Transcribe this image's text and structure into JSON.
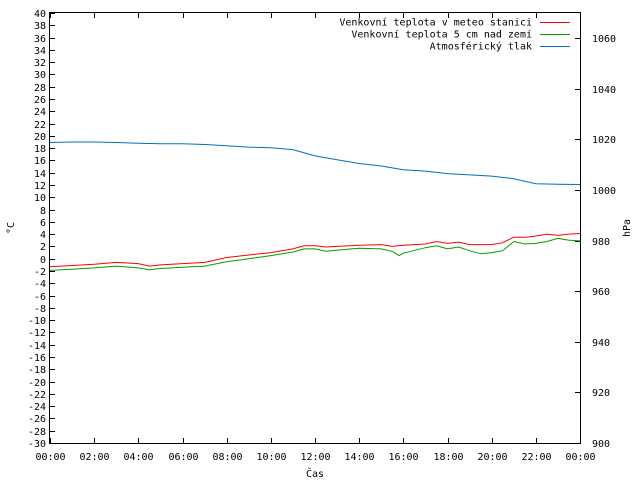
{
  "chart_data": {
    "type": "line",
    "xlabel": "Čas",
    "ylabel_left": "°C",
    "ylabel_right": "hPa",
    "xlim": [
      0,
      24
    ],
    "ylim_left": [
      -30,
      40
    ],
    "ylim_right": [
      900,
      1070
    ],
    "x_tick_labels": [
      "00:00",
      "02:00",
      "04:00",
      "06:00",
      "08:00",
      "10:00",
      "12:00",
      "14:00",
      "16:00",
      "18:00",
      "20:00",
      "22:00",
      "00:00"
    ],
    "y_left_ticks": [
      -30,
      -28,
      -26,
      -24,
      -22,
      -20,
      -18,
      -16,
      -14,
      -12,
      -10,
      -8,
      -6,
      -4,
      -2,
      0,
      2,
      4,
      6,
      8,
      10,
      12,
      14,
      16,
      18,
      20,
      22,
      24,
      26,
      28,
      30,
      32,
      34,
      36,
      38,
      40
    ],
    "y_right_ticks": [
      900,
      920,
      940,
      960,
      980,
      1000,
      1020,
      1040,
      1060
    ],
    "legend_position": "top-right",
    "grid": false,
    "series": [
      {
        "name": "Venkovní teplota v meteo stanici",
        "color": "#ff0000",
        "axis": "left",
        "x": [
          0,
          1,
          2,
          3,
          4,
          4.5,
          5,
          6,
          7,
          8,
          9,
          10,
          11,
          11.5,
          12,
          12.5,
          13,
          14,
          15,
          15.5,
          16,
          17,
          17.5,
          18,
          18.5,
          19,
          20,
          20.5,
          21,
          21.5,
          22,
          22.5,
          23,
          23.5,
          24
        ],
        "y": [
          -1.3,
          -1.1,
          -0.9,
          -0.6,
          -0.8,
          -1.2,
          -1.0,
          -0.8,
          -0.6,
          0.2,
          0.6,
          1.0,
          1.6,
          2.1,
          2.1,
          1.9,
          2.0,
          2.2,
          2.3,
          2.0,
          2.2,
          2.4,
          2.8,
          2.5,
          2.7,
          2.3,
          2.3,
          2.6,
          3.5,
          3.5,
          3.7,
          4.0,
          3.8,
          4.0,
          4.1
        ]
      },
      {
        "name": "Venkovní teplota 5 cm nad zemí",
        "color": "#00a000",
        "axis": "left",
        "x": [
          0,
          1,
          2,
          3,
          4,
          4.5,
          5,
          6,
          7,
          8,
          9,
          10,
          11,
          11.5,
          12,
          12.5,
          13,
          14,
          15,
          15.5,
          15.8,
          16,
          17,
          17.5,
          18,
          18.5,
          19,
          19.5,
          20,
          20.5,
          21,
          21.5,
          22,
          22.5,
          23,
          23.5,
          24
        ],
        "y": [
          -1.9,
          -1.7,
          -1.5,
          -1.2,
          -1.5,
          -1.8,
          -1.6,
          -1.4,
          -1.2,
          -0.5,
          0,
          0.5,
          1.1,
          1.6,
          1.6,
          1.2,
          1.4,
          1.7,
          1.6,
          1.2,
          0.5,
          0.9,
          1.8,
          2.1,
          1.6,
          1.9,
          1.3,
          0.8,
          1.0,
          1.3,
          2.8,
          2.4,
          2.5,
          2.8,
          3.3,
          3.0,
          2.9
        ]
      },
      {
        "name": "Atmosférický tlak",
        "color": "#0070c0",
        "axis": "right",
        "x": [
          0,
          1,
          2,
          3,
          4,
          5,
          6,
          7,
          8,
          9,
          10,
          11,
          12,
          13,
          14,
          15,
          16,
          17,
          18,
          19,
          20,
          21,
          22,
          23,
          24
        ],
        "y": [
          1018.8,
          1019.0,
          1019.0,
          1018.8,
          1018.5,
          1018.3,
          1018.3,
          1018.0,
          1017.5,
          1017.0,
          1016.7,
          1016.0,
          1013.5,
          1012.0,
          1010.5,
          1009.5,
          1008.0,
          1007.5,
          1006.5,
          1006.0,
          1005.5,
          1004.5,
          1002.5,
          1002.3,
          1002.2
        ]
      }
    ]
  }
}
